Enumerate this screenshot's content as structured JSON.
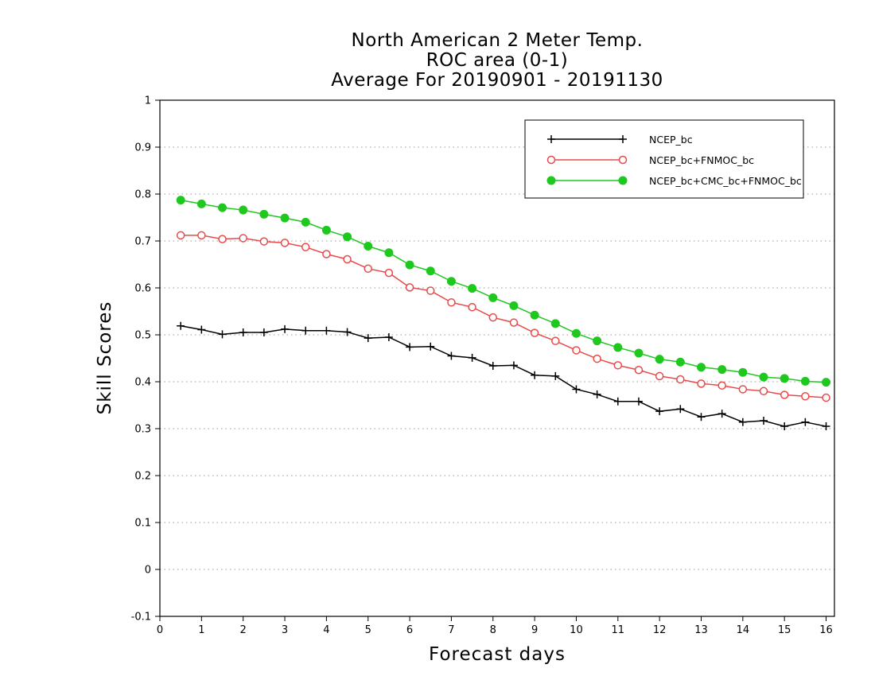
{
  "chart_data": {
    "type": "line",
    "title": [
      "North American 2 Meter Temp.",
      "ROC area (0-1)",
      "Average For 20190901 - 20191130"
    ],
    "xlabel": "Forecast days",
    "ylabel": "Skill Scores",
    "xlim": [
      0,
      16.2
    ],
    "ylim": [
      -0.1,
      1
    ],
    "x_ticks": [
      0,
      1,
      2,
      3,
      4,
      5,
      6,
      7,
      8,
      9,
      10,
      11,
      12,
      13,
      14,
      15,
      16
    ],
    "y_ticks": [
      -0.1,
      0,
      0.1,
      0.2,
      0.3,
      0.4,
      0.5,
      0.6,
      0.7,
      0.8,
      0.9,
      1
    ],
    "grid": "horizontal dotted",
    "legend_position": "top-right",
    "x": [
      0.5,
      1,
      1.5,
      2,
      2.5,
      3,
      3.5,
      4,
      4.5,
      5,
      5.5,
      6,
      6.5,
      7,
      7.5,
      8,
      8.5,
      9,
      9.5,
      10,
      10.5,
      11,
      11.5,
      12,
      12.5,
      13,
      13.5,
      14,
      14.5,
      15,
      15.5,
      16
    ],
    "series": [
      {
        "name": "NCEP_bc",
        "color": "#000000",
        "marker": "plus",
        "values": [
          0.519,
          0.511,
          0.501,
          0.505,
          0.505,
          0.512,
          0.509,
          0.509,
          0.506,
          0.493,
          0.495,
          0.474,
          0.475,
          0.455,
          0.451,
          0.434,
          0.435,
          0.414,
          0.412,
          0.384,
          0.373,
          0.358,
          0.358,
          0.337,
          0.342,
          0.325,
          0.332,
          0.314,
          0.317,
          0.305,
          0.314,
          0.305
        ]
      },
      {
        "name": "NCEP_bc+FNMOC_bc",
        "color": "#e84a4a",
        "marker": "open-circle",
        "values": [
          0.712,
          0.712,
          0.704,
          0.706,
          0.699,
          0.696,
          0.687,
          0.672,
          0.661,
          0.641,
          0.632,
          0.601,
          0.594,
          0.569,
          0.559,
          0.537,
          0.526,
          0.504,
          0.487,
          0.467,
          0.449,
          0.435,
          0.425,
          0.412,
          0.405,
          0.396,
          0.392,
          0.384,
          0.38,
          0.372,
          0.369,
          0.366
        ]
      },
      {
        "name": "NCEP_bc+CMC_bc+FNMOC_bc",
        "color": "#1ec81e",
        "marker": "filled-circle",
        "values": [
          0.787,
          0.779,
          0.771,
          0.766,
          0.757,
          0.749,
          0.74,
          0.723,
          0.709,
          0.689,
          0.675,
          0.649,
          0.636,
          0.614,
          0.599,
          0.579,
          0.562,
          0.542,
          0.524,
          0.503,
          0.487,
          0.473,
          0.461,
          0.448,
          0.442,
          0.431,
          0.426,
          0.42,
          0.41,
          0.407,
          0.401,
          0.399
        ]
      }
    ]
  }
}
